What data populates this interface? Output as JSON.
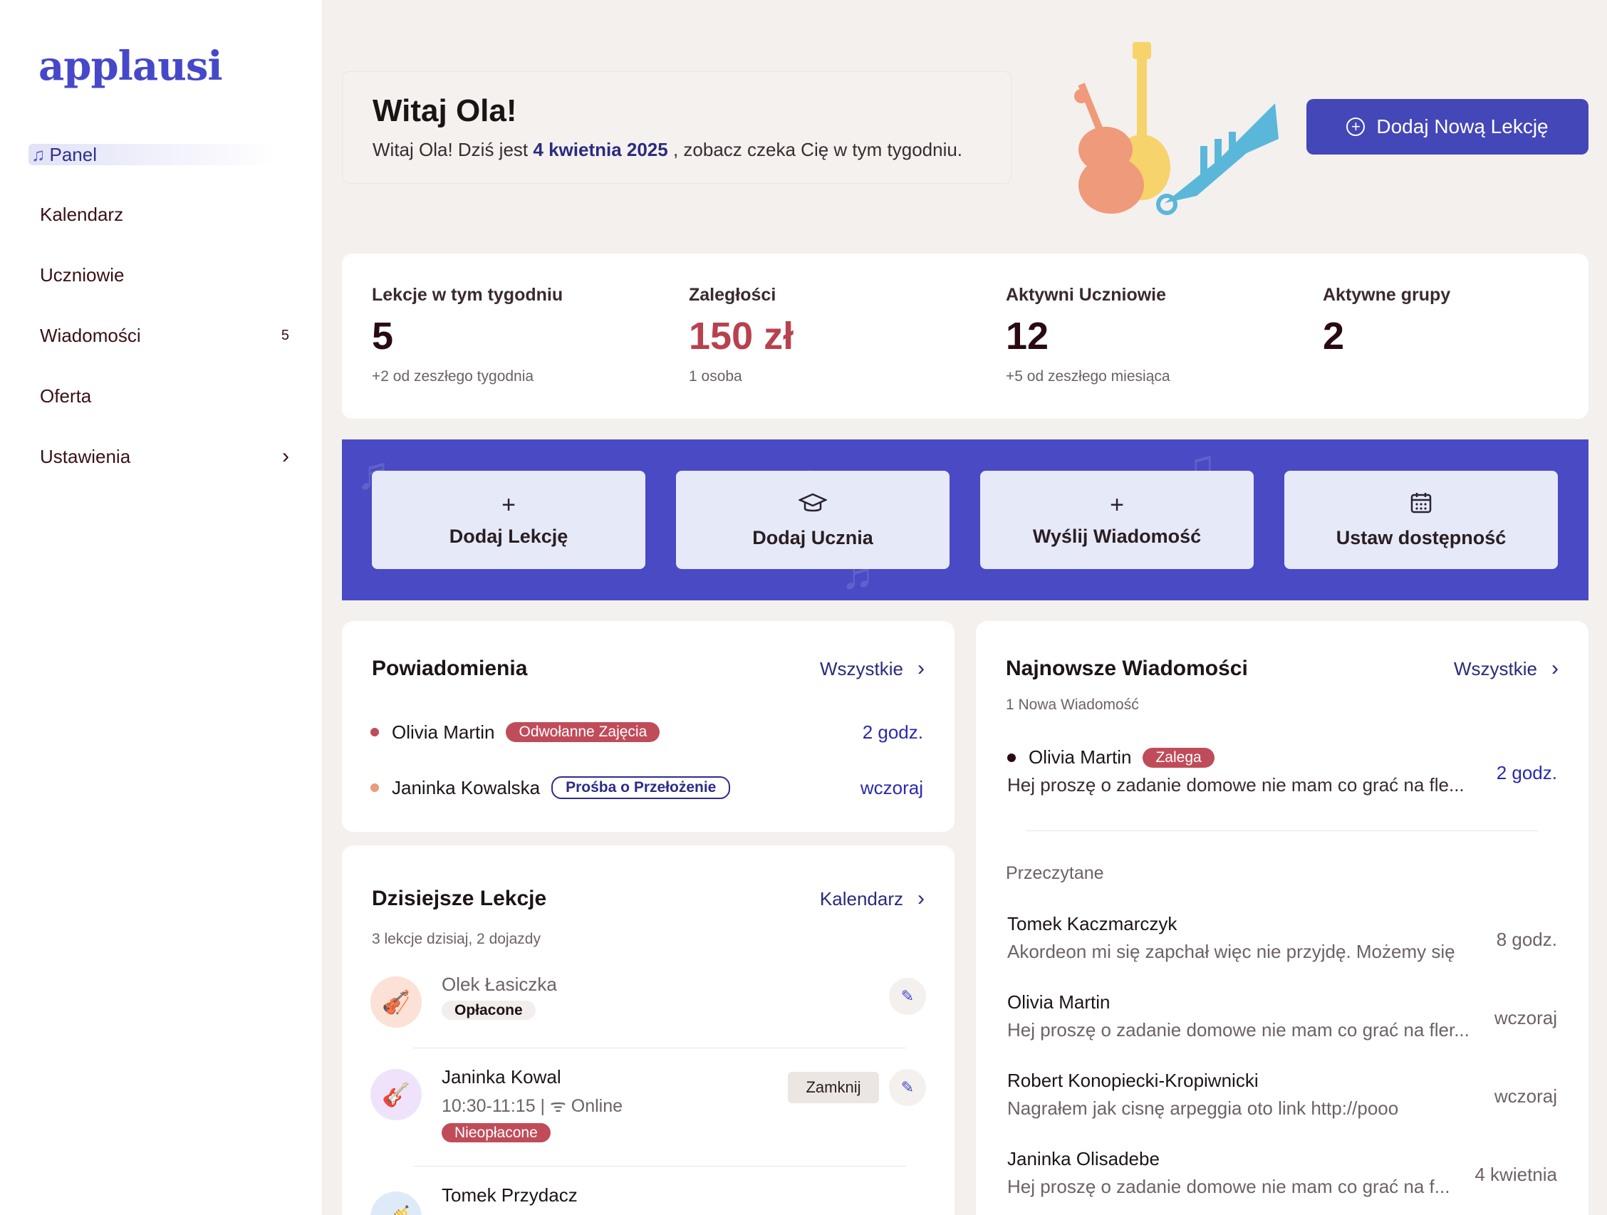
{
  "brand": {
    "logo": "applausi"
  },
  "sidebar": {
    "items": [
      {
        "label": "Panel",
        "active": true
      },
      {
        "label": "Kalendarz"
      },
      {
        "label": "Uczniowie"
      },
      {
        "label": "Wiadomości",
        "badge": "5"
      },
      {
        "label": "Oferta"
      },
      {
        "label": "Ustawienia",
        "chevron": true
      }
    ]
  },
  "welcome": {
    "title": "Witaj Ola!",
    "sub_prefix": "Witaj Ola! Dziś jest",
    "date": "4 kwietnia 2025",
    "sub_suffix": ", zobacz czeka Cię w tym tygodniu."
  },
  "header_action": {
    "label": "Dodaj Nową Lekcję",
    "icon": "plus-circle-icon"
  },
  "stats": [
    {
      "label": "Lekcje w tym tygodniu",
      "value": "5",
      "sub": "+2  od zeszłego tygodnia"
    },
    {
      "label": "Zaległości",
      "value": "150 zł",
      "sub": "1 osoba",
      "accent": "#b7424f"
    },
    {
      "label": "Aktywni Uczniowie",
      "value": "12",
      "sub": "+5  od zeszłego miesiąca"
    },
    {
      "label": "Aktywne grupy",
      "value": "2",
      "sub": ""
    }
  ],
  "quick_actions": [
    {
      "label": "Dodaj Lekcję",
      "icon": "plus-icon"
    },
    {
      "label": "Dodaj Ucznia",
      "icon": "graduation-cap-icon"
    },
    {
      "label": "Wyślij Wiadomość",
      "icon": "plus-icon"
    },
    {
      "label": "Ustaw dostępność",
      "icon": "calendar-icon"
    }
  ],
  "notifications": {
    "title": "Powiadomienia",
    "link": "Wszystkie",
    "items": [
      {
        "name": "Olivia Martin",
        "tag": "Odwołanne Zajęcia",
        "time": "2 godz.",
        "dot": "#c04c59"
      },
      {
        "name": "Janinka Kowalska",
        "tag": "Prośba o Przełożenie",
        "time": "wczoraj",
        "dot": "#eb9a7a"
      }
    ]
  },
  "lessons": {
    "title": "Dzisiejsze Lekcje",
    "link": "Kalendarz",
    "sub": "3 lekcje dzisiaj, 2 dojazdy",
    "items": [
      {
        "name": "Olek Łasiczka",
        "status": "Opłacone"
      },
      {
        "name": "Janinka Kowal",
        "meta": "10:30-11:15  |  ᯤ Online",
        "status": "Nieopłacone",
        "action": "Zamknij"
      },
      {
        "name": "Tomek Przydacz"
      }
    ]
  },
  "messages": {
    "title": "Najnowsze Wiadomości",
    "link": "Wszystkie",
    "sub": "1 Nowa Wiadomość",
    "new_item": {
      "name": "Olivia Martin",
      "tag": "Zalega",
      "text": "Hej proszę o zadanie domowe nie mam co grać na fle...",
      "time": "2 godz."
    },
    "read_label": "Przeczytane",
    "read_items": [
      {
        "name": "Tomek Kaczmarczyk",
        "text": "Akordeon mi się zapchał więc nie przyjdę. Możemy się",
        "time": "8 godz."
      },
      {
        "name": "Olivia Martin",
        "text": "Hej proszę o zadanie domowe nie mam co grać na fler...",
        "time": "wczoraj"
      },
      {
        "name": "Robert Konopiecki-Kropiwnicki",
        "text": "Nagrałem jak cisnę arpeggia oto link http://pooo",
        "time": "wczoraj"
      },
      {
        "name": "Janinka Olisadebe",
        "text": "Hej proszę o zadanie domowe nie mam co grać na f...",
        "time": "4 kwietnia"
      }
    ]
  },
  "colors": {
    "primary": "#4447b7",
    "band": "#4a4ac4",
    "danger": "#c04c59"
  }
}
